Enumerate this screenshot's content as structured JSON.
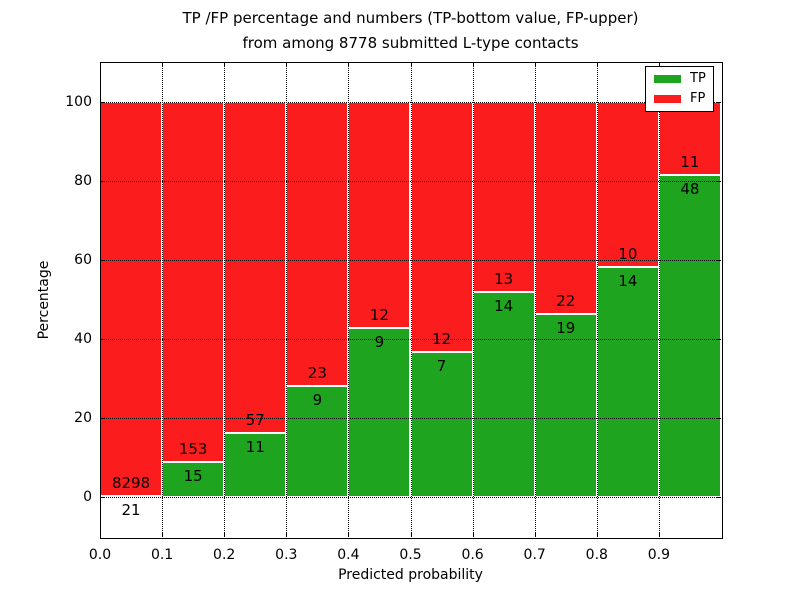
{
  "title": {
    "line1": "TP /FP percentage and numbers (TP-bottom value, FP-upper)",
    "line2": "from among 8778 submitted L-type contacts"
  },
  "chart_data": {
    "type": "bar",
    "stacked": true,
    "title": "TP /FP percentage and numbers (TP-bottom value, FP-upper) from among 8778 submitted L-type contacts",
    "xlabel": "Predicted probability",
    "ylabel": "Percentage",
    "xlim": [
      0.0,
      1.0
    ],
    "ylim": [
      -10,
      110
    ],
    "xticks": [
      0.0,
      0.1,
      0.2,
      0.3,
      0.4,
      0.5,
      0.6,
      0.7,
      0.8,
      0.9
    ],
    "xtick_labels": [
      "0.0",
      "0.1",
      "0.2",
      "0.3",
      "0.4",
      "0.5",
      "0.6",
      "0.7",
      "0.8",
      "0.9"
    ],
    "yticks": [
      0,
      20,
      40,
      60,
      80,
      100
    ],
    "ytick_labels": [
      "0",
      "20",
      "40",
      "60",
      "80",
      "100"
    ],
    "grid": "dotted",
    "legend_position": "upper right",
    "legend": [
      {
        "label": "TP",
        "color": "#1ea41e"
      },
      {
        "label": "FP",
        "color": "#fb1d1d"
      }
    ],
    "bars": [
      {
        "range": [
          0.0,
          0.1
        ],
        "tp_count": "21",
        "fp_count": "8298",
        "tp_percent": 0.25,
        "fp_percent": 99.75
      },
      {
        "range": [
          0.1,
          0.2
        ],
        "tp_count": "15",
        "fp_count": "153",
        "tp_percent": 8.93,
        "fp_percent": 91.07
      },
      {
        "range": [
          0.2,
          0.3
        ],
        "tp_count": "11",
        "fp_count": "57",
        "tp_percent": 16.18,
        "fp_percent": 83.82
      },
      {
        "range": [
          0.3,
          0.4
        ],
        "tp_count": "9",
        "fp_count": "23",
        "tp_percent": 28.13,
        "fp_percent": 71.87
      },
      {
        "range": [
          0.4,
          0.5
        ],
        "tp_count": "9",
        "fp_count": "12",
        "tp_percent": 42.86,
        "fp_percent": 57.14
      },
      {
        "range": [
          0.5,
          0.6
        ],
        "tp_count": "7",
        "fp_count": "12",
        "tp_percent": 36.84,
        "fp_percent": 63.16
      },
      {
        "range": [
          0.6,
          0.7
        ],
        "tp_count": "14",
        "fp_count": "13",
        "tp_percent": 51.85,
        "fp_percent": 48.15
      },
      {
        "range": [
          0.7,
          0.8
        ],
        "tp_count": "19",
        "fp_count": "22",
        "tp_percent": 46.34,
        "fp_percent": 53.66
      },
      {
        "range": [
          0.8,
          0.9
        ],
        "tp_count": "14",
        "fp_count": "10",
        "tp_percent": 58.33,
        "fp_percent": 41.67
      },
      {
        "range": [
          0.9,
          1.0
        ],
        "tp_count": "48",
        "fp_count": "11",
        "tp_percent": 81.36,
        "fp_percent": 18.64
      }
    ]
  }
}
